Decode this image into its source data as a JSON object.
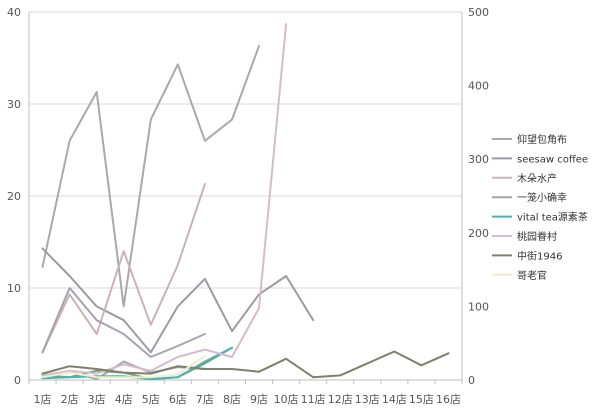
{
  "chart_data": {
    "type": "line",
    "title": "",
    "xlabel": "",
    "ylabel": "",
    "categories": [
      "1店",
      "2店",
      "3店",
      "4店",
      "5店",
      "6店",
      "7店",
      "8店",
      "9店",
      "10店",
      "11店",
      "12店",
      "13店",
      "14店",
      "15店",
      "16店"
    ],
    "y_left": {
      "min": 0,
      "max": 40,
      "ticks": [
        0,
        10,
        20,
        30,
        40
      ]
    },
    "y_right": {
      "min": 0,
      "max": 500,
      "ticks": [
        0,
        100,
        200,
        300,
        400,
        500
      ]
    },
    "grid": true,
    "legend_position": "right",
    "series": [
      {
        "name": "仰望包角布",
        "color": "#a9a9ad",
        "axis": "left",
        "values": [
          12.3,
          26,
          31.3,
          8,
          28.3,
          34.3,
          26,
          28.3,
          36.3,
          null,
          null,
          null,
          null,
          null,
          null,
          null
        ]
      },
      {
        "name": "seesaw coffee",
        "color": "#9d9aa4",
        "axis": "left",
        "values": [
          14.3,
          11.3,
          8,
          6.5,
          3,
          8,
          11,
          5.3,
          9.3,
          11.3,
          6.5,
          null,
          null,
          null,
          null,
          null
        ]
      },
      {
        "name": "木朵水产",
        "color": "#c9b3b6",
        "axis": "left",
        "values": [
          3,
          9.3,
          5,
          14,
          6,
          12.5,
          21.3,
          null,
          null,
          null,
          null,
          null,
          null,
          null,
          null,
          null
        ]
      },
      {
        "name": "一笼小确幸",
        "color": "#a8a1b0",
        "axis": "left",
        "values": [
          3,
          10,
          6.5,
          5,
          2.5,
          3.7,
          5,
          null,
          null,
          null,
          null,
          null,
          null,
          null,
          null,
          null
        ]
      },
      {
        "name": "vital tea源素茶",
        "color": "#4ab3b3",
        "axis": "left",
        "values": [
          0.2,
          0.3,
          0.4,
          0.4,
          0.1,
          0.3,
          2,
          3.5,
          null,
          null,
          null,
          null,
          null,
          null,
          null,
          null
        ]
      },
      {
        "name": "桃园眷村",
        "color": "#d4bbd0",
        "axis": "left",
        "values": [
          0.5,
          1,
          0.7,
          1.7,
          1,
          2.5,
          3.3,
          2.5,
          7.8,
          38.7,
          null,
          null,
          null,
          null,
          null,
          null
        ]
      },
      {
        "name": "中街1946",
        "color": "#7d806a",
        "axis": "left",
        "values": [
          0.7,
          1.5,
          1.2,
          0.8,
          0.7,
          1.5,
          1.2,
          1.2,
          0.9,
          2.3,
          0.3,
          0.5,
          1.8,
          3.1,
          1.6,
          2.9
        ]
      },
      {
        "name": "哥老官",
        "color": "#eeedce",
        "axis": "left",
        "values": [
          0.3,
          0.8,
          0.3,
          0.3,
          0.3,
          0.6,
          2.6,
          null,
          null,
          null,
          null,
          null,
          null,
          null,
          null,
          null
        ]
      }
    ],
    "extra_lines": [
      {
        "color": "#a9a7aa",
        "values": [
          0.2,
          0.9,
          0.1,
          2,
          0.8,
          1.4,
          1.2,
          null,
          null,
          null,
          null,
          null,
          null,
          null,
          null,
          null
        ]
      },
      {
        "color": "#7d9d72",
        "values": [
          0.5,
          0.3,
          1,
          0.8,
          0.1,
          0.3,
          1.8,
          3.5,
          null,
          null,
          null,
          null,
          null,
          null,
          null,
          null
        ]
      }
    ]
  }
}
